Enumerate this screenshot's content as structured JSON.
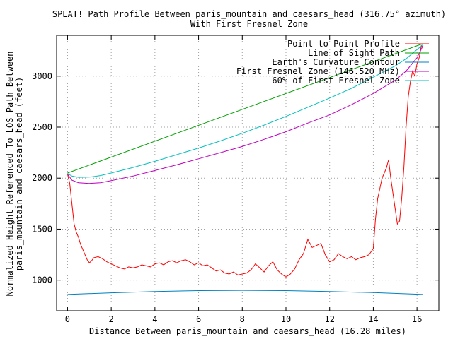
{
  "chart_data": {
    "type": "line",
    "title": "SPLAT! Path Profile Between paris_mountain and caesars_head (316.75° azimuth)",
    "subtitle": "With First Fresnel Zone",
    "xlabel": "Distance Between paris_mountain and caesars_head (16.28 miles)",
    "ylabel_line1": "Normalized Height Referenced To LOS Path Between",
    "ylabel_line2": "paris_mountain and caesars_head (feet)",
    "xlim": [
      -0.5,
      17
    ],
    "ylim": [
      700,
      3400
    ],
    "x_ticks": [
      0,
      2,
      4,
      6,
      8,
      10,
      12,
      14,
      16
    ],
    "y_ticks": [
      1000,
      1500,
      2000,
      2500,
      3000
    ],
    "grid": true,
    "legend_position": "top-right",
    "series": [
      {
        "name": "Point-to-Point Profile",
        "color": "#ff0000",
        "x": [
          0,
          0.1,
          0.2,
          0.3,
          0.4,
          0.5,
          0.6,
          0.7,
          0.8,
          0.9,
          1.0,
          1.1,
          1.2,
          1.4,
          1.6,
          1.8,
          2.0,
          2.2,
          2.4,
          2.6,
          2.8,
          3.0,
          3.2,
          3.4,
          3.6,
          3.8,
          4.0,
          4.2,
          4.4,
          4.6,
          4.8,
          5.0,
          5.2,
          5.4,
          5.6,
          5.8,
          6.0,
          6.2,
          6.4,
          6.6,
          6.8,
          7.0,
          7.2,
          7.4,
          7.6,
          7.8,
          8.0,
          8.2,
          8.4,
          8.6,
          8.8,
          9.0,
          9.2,
          9.4,
          9.6,
          9.8,
          10.0,
          10.2,
          10.4,
          10.6,
          10.8,
          11.0,
          11.2,
          11.4,
          11.6,
          11.8,
          12.0,
          12.2,
          12.4,
          12.6,
          12.8,
          13.0,
          13.2,
          13.4,
          13.6,
          13.8,
          14.0,
          14.1,
          14.2,
          14.3,
          14.4,
          14.5,
          14.6,
          14.7,
          14.8,
          14.9,
          15.0,
          15.1,
          15.2,
          15.3,
          15.4,
          15.5,
          15.6,
          15.7,
          15.8,
          15.9,
          16.0,
          16.1,
          16.2,
          16.28
        ],
        "y": [
          2040,
          1950,
          1750,
          1550,
          1470,
          1420,
          1350,
          1300,
          1250,
          1200,
          1170,
          1190,
          1220,
          1230,
          1210,
          1180,
          1160,
          1140,
          1120,
          1110,
          1130,
          1120,
          1130,
          1150,
          1140,
          1130,
          1160,
          1170,
          1150,
          1180,
          1190,
          1170,
          1190,
          1200,
          1180,
          1150,
          1170,
          1140,
          1150,
          1120,
          1090,
          1100,
          1070,
          1060,
          1080,
          1050,
          1060,
          1070,
          1100,
          1160,
          1120,
          1080,
          1140,
          1180,
          1100,
          1060,
          1030,
          1060,
          1110,
          1200,
          1260,
          1400,
          1320,
          1340,
          1360,
          1250,
          1180,
          1200,
          1260,
          1230,
          1210,
          1230,
          1200,
          1220,
          1230,
          1250,
          1310,
          1600,
          1800,
          1900,
          2000,
          2050,
          2100,
          2180,
          2000,
          1850,
          1700,
          1550,
          1580,
          1800,
          2100,
          2500,
          2800,
          2950,
          3050,
          3000,
          3120,
          3180,
          3300,
          3280
        ]
      },
      {
        "name": "Line of Sight Path",
        "color": "#00a000",
        "x": [
          0,
          16.28
        ],
        "y": [
          2050,
          3320
        ]
      },
      {
        "name": "Earth's Curvature Contour",
        "color": "#0080c0",
        "x": [
          0,
          2,
          4,
          6,
          8,
          10,
          12,
          14,
          16.28
        ],
        "y": [
          860,
          876,
          888,
          897,
          900,
          897,
          889,
          878,
          860
        ]
      },
      {
        "name": "First Fresnel Zone (146.520 MHz)",
        "color": "#c000c0",
        "x": [
          0,
          0.2,
          0.5,
          1,
          1.5,
          2,
          3,
          4,
          5,
          6,
          7,
          8,
          9,
          10,
          11,
          12,
          13,
          14,
          15,
          15.5,
          16,
          16.28
        ],
        "y": [
          2040,
          1980,
          1955,
          1948,
          1955,
          1975,
          2020,
          2075,
          2130,
          2190,
          2250,
          2310,
          2380,
          2455,
          2540,
          2620,
          2720,
          2830,
          2960,
          3050,
          3180,
          3300
        ]
      },
      {
        "name": "60% of First Fresnel Zone",
        "color": "#00c0c0",
        "x": [
          0,
          0.2,
          0.5,
          1,
          1.5,
          2,
          3,
          4,
          5,
          6,
          7,
          8,
          9,
          10,
          11,
          12,
          13,
          14,
          15,
          15.5,
          16,
          16.28
        ],
        "y": [
          2045,
          2020,
          2008,
          2010,
          2025,
          2050,
          2105,
          2165,
          2230,
          2295,
          2365,
          2440,
          2520,
          2605,
          2695,
          2785,
          2880,
          2990,
          3100,
          3170,
          3260,
          3310
        ]
      }
    ]
  }
}
